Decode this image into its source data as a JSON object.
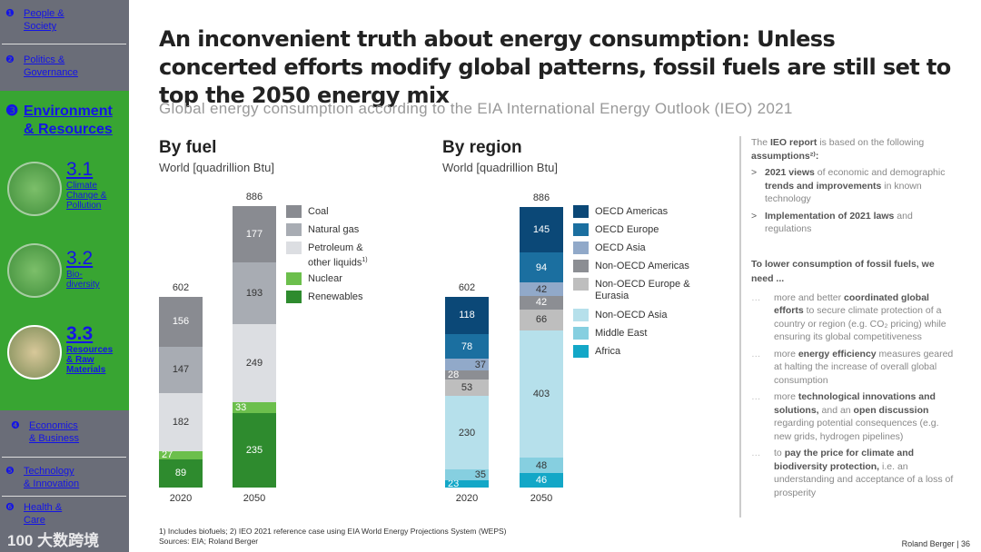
{
  "sidebar": {
    "items": [
      {
        "num": "❶",
        "label1": "People &",
        "label2": "Society"
      },
      {
        "num": "❷",
        "label1": "Politics &",
        "label2": "Governance"
      },
      {
        "num": "❸",
        "label1": "Environment",
        "label2": "& Resources"
      },
      {
        "num": "❹",
        "label1": "Economics",
        "label2": "& Business"
      },
      {
        "num": "❺",
        "label1": "Technology",
        "label2": "& Innovation"
      },
      {
        "num": "❻",
        "label1": "Health &",
        "label2": "Care"
      }
    ],
    "subs": [
      {
        "num": "3.1",
        "label": "Climate Change & Pollution"
      },
      {
        "num": "3.2",
        "label": "Bio-diversity"
      },
      {
        "num": "3.3",
        "label": "Resources & Raw Materials"
      }
    ],
    "watermark": "100 大数跨境"
  },
  "title": "An inconvenient truth about energy consumption: Unless concerted efforts modify global patterns, fossil fuels are still set to top the 2050 energy mix",
  "subtitle": "Global energy consumption according to the EIA International Energy Outlook (IEO) 2021",
  "chart_data": [
    {
      "type": "bar",
      "stacked": true,
      "title": "By fuel",
      "ylabel": "World [quadrillion Btu]",
      "categories": [
        "2020",
        "2050"
      ],
      "totals": [
        "602",
        "886"
      ],
      "series": [
        {
          "name": "Renewables",
          "color": "#2e8b2e",
          "text": "#fff",
          "values": [
            89,
            235
          ]
        },
        {
          "name": "Nuclear",
          "color": "#6cbf4c",
          "text": "#fff",
          "values": [
            27,
            33
          ]
        },
        {
          "name": "Petroleum & other liquids",
          "sup": "1)",
          "color": "#dcdee2",
          "text": "#333",
          "values": [
            182,
            249
          ]
        },
        {
          "name": "Natural gas",
          "color": "#a8acb3",
          "text": "#333",
          "values": [
            147,
            193
          ]
        },
        {
          "name": "Coal",
          "color": "#898b91",
          "text": "#fff",
          "values": [
            156,
            177
          ]
        }
      ]
    },
    {
      "type": "bar",
      "stacked": true,
      "title": "By region",
      "ylabel": "World [quadrillion Btu]",
      "categories": [
        "2020",
        "2050"
      ],
      "totals": [
        "602",
        "886"
      ],
      "series": [
        {
          "name": "Africa",
          "color": "#13a7c7",
          "text": "#fff",
          "values": [
            23,
            46
          ]
        },
        {
          "name": "Middle East",
          "color": "#86cfe0",
          "text": "#333",
          "values": [
            35,
            48
          ]
        },
        {
          "name": "Non-OECD Asia",
          "color": "#b6e0eb",
          "text": "#333",
          "values": [
            230,
            403
          ]
        },
        {
          "name": "Non-OECD Europe & Eurasia",
          "color": "#bebebe",
          "text": "#333",
          "values": [
            53,
            66
          ]
        },
        {
          "name": "Non-OECD Americas",
          "color": "#8c8e93",
          "text": "#fff",
          "values": [
            28,
            42
          ]
        },
        {
          "name": "OECD Asia",
          "color": "#91a9c9",
          "text": "#333",
          "values": [
            37,
            42
          ]
        },
        {
          "name": "OECD Europe",
          "color": "#1b6fa0",
          "text": "#fff",
          "values": [
            78,
            94
          ]
        },
        {
          "name": "OECD Americas",
          "color": "#0b4877",
          "text": "#fff",
          "values": [
            118,
            145
          ]
        }
      ]
    }
  ],
  "right": {
    "intro_a": "The ",
    "intro_b": "IEO report",
    "intro_c": " is based on the following ",
    "intro_d": "assumptions²⁾:",
    "a1_b": "2021 views",
    "a1_t": " of economic and demographic ",
    "a1_b2": "trends and improvements",
    "a1_t2": " in known technology",
    "a2_b": "Implementation of 2021 laws",
    "a2_t": " and regulations",
    "need": "To lower consumption of fossil fuels, we need ...",
    "n1_t": "more and better ",
    "n1_b": "coordinated global efforts",
    "n1_t2": " to secure climate protection of a country or region (e.g. CO₂ pricing) while ensuring its global competitiveness",
    "n2_t": "more ",
    "n2_b": "energy efficiency",
    "n2_t2": " measures geared at halting the increase of overall global consumption",
    "n3_t": "more ",
    "n3_b": "technological innovations and solutions,",
    "n3_t2": " and an ",
    "n3_b2": "open discussion",
    "n3_t3": " regarding potential consequences (e.g. new grids, hydrogen pipelines)",
    "n4_t": "to ",
    "n4_b": "pay the price for climate and biodiversity protection,",
    "n4_t2": " i.e. an understanding and acceptance of a loss of prosperity"
  },
  "footnote1": "1) Includes biofuels;  2) IEO 2021 reference case using EIA World Energy Projections System (WEPS)",
  "footnote2": "Sources: EIA; Roland Berger",
  "brand": "Roland Berger",
  "page": "36"
}
